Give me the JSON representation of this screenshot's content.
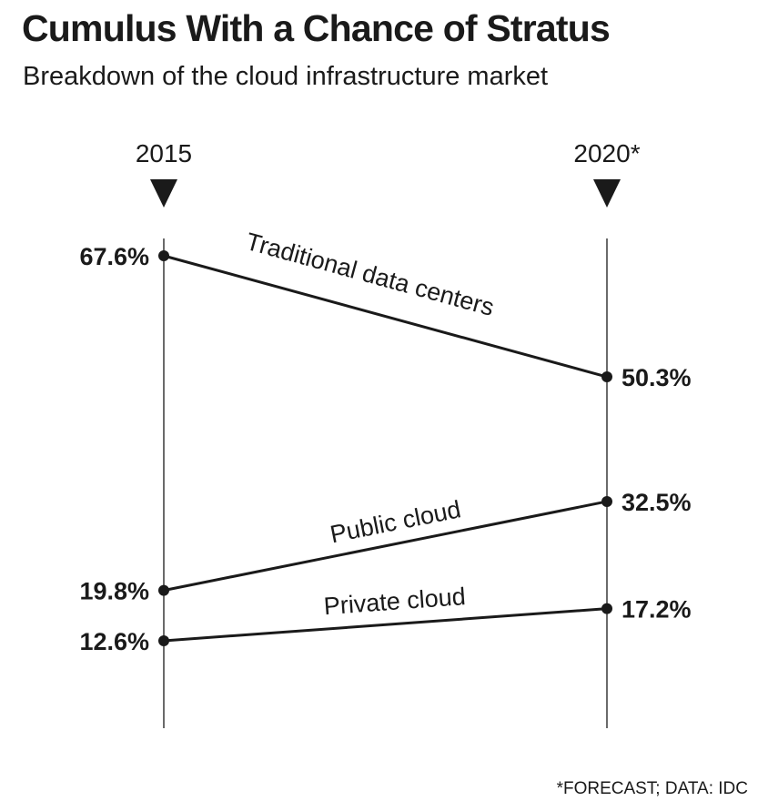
{
  "header": {
    "title": "Cumulus With a Chance of Stratus",
    "subtitle": "Breakdown of the cloud infrastructure market"
  },
  "footer": {
    "source": "*FORECAST; DATA: IDC"
  },
  "colors": {
    "ink": "#1a1a1a",
    "background": "#ffffff"
  },
  "chart_data": {
    "type": "line",
    "title": "Cumulus With a Chance of Stratus",
    "subtitle": "Breakdown of the cloud infrastructure market",
    "x": [
      "2015",
      "2020*"
    ],
    "unit": "%",
    "ylim": [
      0,
      75
    ],
    "grid": false,
    "legend": "none",
    "series": [
      {
        "name": "Traditional data centers",
        "values": [
          67.6,
          50.3
        ],
        "labels": [
          "67.6%",
          "50.3%"
        ]
      },
      {
        "name": "Public cloud",
        "values": [
          19.8,
          32.5
        ],
        "labels": [
          "19.8%",
          "32.5%"
        ]
      },
      {
        "name": "Private cloud",
        "values": [
          12.6,
          17.2
        ],
        "labels": [
          "12.6%",
          "17.2%"
        ]
      }
    ],
    "source": "*FORECAST; DATA: IDC"
  }
}
